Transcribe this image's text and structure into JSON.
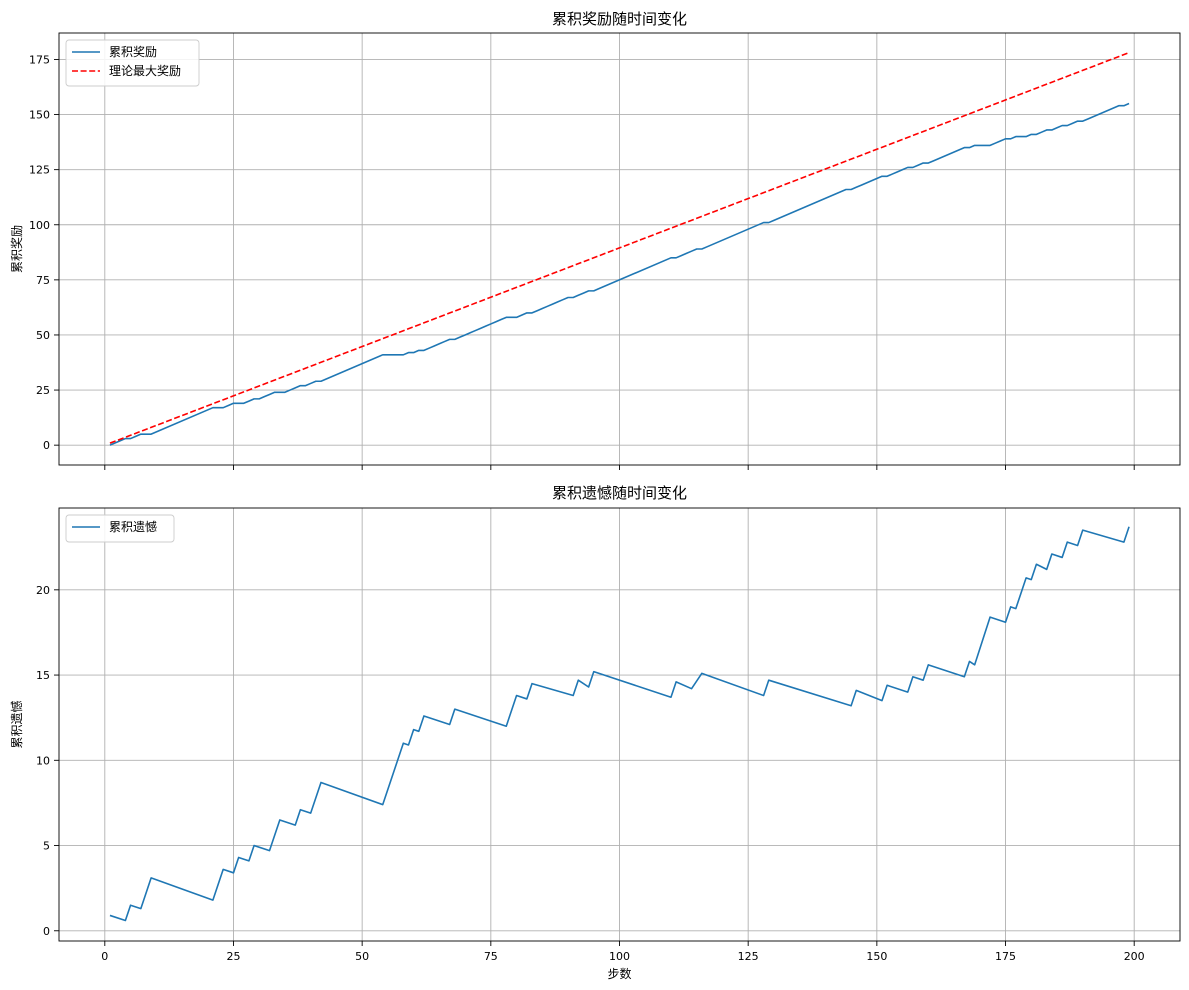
{
  "chart_data": [
    {
      "type": "line",
      "title": "累积奖励随时间变化",
      "xlabel": "",
      "ylabel": "累积奖励",
      "xlim": [
        -8.9,
        208.9
      ],
      "ylim": [
        -9,
        187
      ],
      "xticks": [
        0,
        25,
        50,
        75,
        100,
        125,
        150,
        175,
        200
      ],
      "xtick_labels": [
        "",
        "",
        "",
        "",
        "",
        "",
        "",
        "",
        ""
      ],
      "yticks": [
        0,
        25,
        50,
        75,
        100,
        125,
        150,
        175
      ],
      "ytick_labels": [
        "0",
        "25",
        "50",
        "75",
        "100",
        "125",
        "150",
        "175"
      ],
      "grid": true,
      "legend": "top-left",
      "series": [
        {
          "name": "累积奖励",
          "color": "#1f77b4",
          "style": "solid",
          "x": [
            1,
            3,
            4,
            5,
            6,
            7,
            9,
            21,
            22,
            23,
            24,
            25,
            27,
            28,
            29,
            30,
            31,
            32,
            33,
            34,
            35,
            36,
            37,
            38,
            39,
            40,
            41,
            42,
            54,
            57,
            58,
            59,
            60,
            61,
            62,
            63,
            64,
            65,
            66,
            67,
            68,
            69,
            70,
            71,
            72,
            73,
            74,
            75,
            76,
            77,
            78,
            79,
            80,
            81,
            82,
            83,
            84,
            85,
            86,
            87,
            88,
            89,
            90,
            91,
            92,
            93,
            94,
            95,
            96,
            110,
            111,
            112,
            113,
            114,
            115,
            116,
            117,
            128,
            129,
            130,
            144,
            145,
            146,
            147,
            151,
            152,
            153,
            154,
            155,
            156,
            157,
            158,
            159,
            160,
            161,
            167,
            168,
            169,
            170,
            171,
            172,
            173,
            174,
            175,
            176,
            177,
            178,
            179,
            180,
            181,
            182,
            183,
            184,
            185,
            186,
            187,
            188,
            189,
            190,
            191,
            197,
            198,
            199
          ],
          "y": [
            0,
            2,
            3,
            3,
            4,
            5,
            5,
            17,
            17,
            17,
            18,
            19,
            19,
            20,
            21,
            21,
            22,
            23,
            24,
            24,
            24,
            25,
            26,
            27,
            27,
            28,
            29,
            29,
            41,
            41,
            41,
            42,
            42,
            43,
            43,
            44,
            45,
            46,
            47,
            48,
            48,
            49,
            50,
            51,
            52,
            53,
            54,
            55,
            56,
            57,
            58,
            58,
            58,
            59,
            60,
            60,
            61,
            62,
            63,
            64,
            65,
            66,
            67,
            67,
            68,
            69,
            70,
            70,
            71,
            85,
            85,
            86,
            87,
            88,
            89,
            89,
            90,
            101,
            101,
            102,
            116,
            116,
            117,
            118,
            122,
            122,
            123,
            124,
            125,
            126,
            126,
            127,
            128,
            128,
            129,
            135,
            135,
            136,
            136,
            136,
            136,
            137,
            138,
            139,
            139,
            140,
            140,
            140,
            141,
            141,
            142,
            143,
            143,
            144,
            145,
            145,
            146,
            147,
            147,
            148,
            154,
            154,
            155
          ]
        },
        {
          "name": "理论最大奖励",
          "color": "#ff0000",
          "style": "dashed",
          "x": [
            1,
            199
          ],
          "y": [
            0.9,
            178.1
          ]
        }
      ]
    },
    {
      "type": "line",
      "title": "累积遗憾随时间变化",
      "xlabel": "步数",
      "ylabel": "累积遗憾",
      "xlim": [
        -8.9,
        208.9
      ],
      "ylim": [
        -0.6,
        24.8
      ],
      "xticks": [
        0,
        25,
        50,
        75,
        100,
        125,
        150,
        175,
        200
      ],
      "xtick_labels": [
        "0",
        "25",
        "50",
        "75",
        "100",
        "125",
        "150",
        "175",
        "200"
      ],
      "yticks": [
        0,
        5,
        10,
        15,
        20
      ],
      "ytick_labels": [
        "0",
        "5",
        "10",
        "15",
        "20"
      ],
      "grid": true,
      "legend": "top-left",
      "series": [
        {
          "name": "累积遗憾",
          "color": "#1f77b4",
          "style": "solid",
          "x": [
            1,
            4,
            5,
            7,
            9,
            21,
            23,
            25,
            26,
            28,
            29,
            32,
            34,
            37,
            38,
            40,
            42,
            54,
            58,
            59,
            60,
            61,
            62,
            67,
            68,
            78,
            80,
            82,
            83,
            91,
            92,
            94,
            95,
            110,
            111,
            114,
            116,
            128,
            129,
            145,
            146,
            151,
            152,
            156,
            157,
            159,
            160,
            167,
            168,
            169,
            172,
            175,
            176,
            177,
            179,
            180,
            181,
            183,
            184,
            186,
            187,
            189,
            190,
            198,
            199
          ],
          "y": [
            0.9,
            0.6,
            1.5,
            1.3,
            3.1,
            1.8,
            3.6,
            3.4,
            4.3,
            4.1,
            5.0,
            4.7,
            6.5,
            6.2,
            7.1,
            6.9,
            8.7,
            7.4,
            11.0,
            10.9,
            11.8,
            11.7,
            12.6,
            12.1,
            13.0,
            12.0,
            13.8,
            13.6,
            14.5,
            13.8,
            14.7,
            14.3,
            15.2,
            13.7,
            14.6,
            14.2,
            15.1,
            13.8,
            14.7,
            13.2,
            14.1,
            13.5,
            14.4,
            14.0,
            14.9,
            14.7,
            15.6,
            14.9,
            15.8,
            15.6,
            18.4,
            18.1,
            19.0,
            18.9,
            20.7,
            20.6,
            21.5,
            21.2,
            22.1,
            21.9,
            22.8,
            22.6,
            23.5,
            22.8,
            23.7
          ]
        }
      ]
    }
  ]
}
